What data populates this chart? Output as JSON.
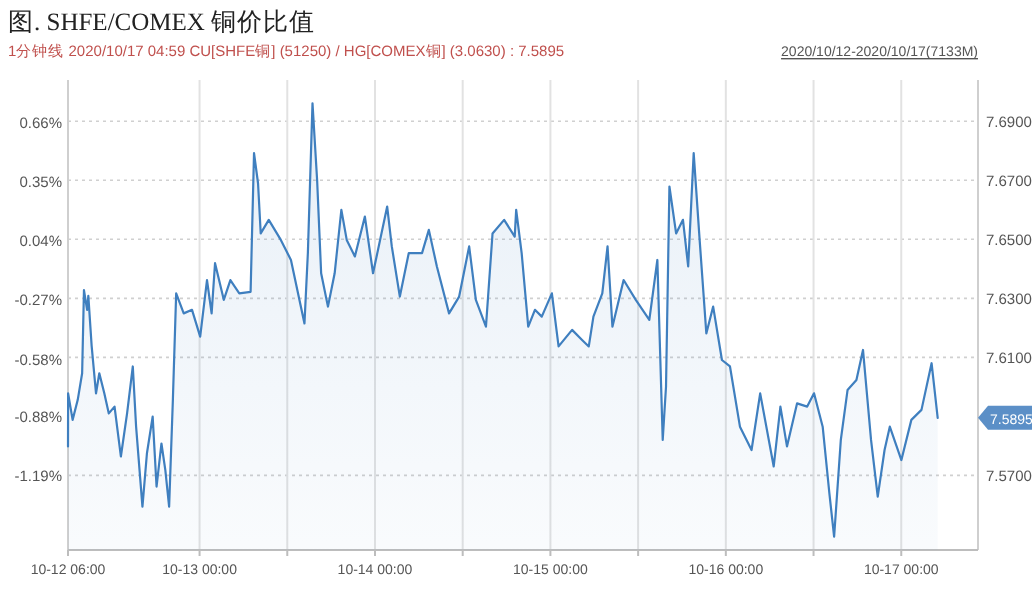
{
  "chart_data": {
    "type": "area",
    "title": "图. SHFE/COMEX 铜价比值",
    "subtitle": "1分钟线 2020/10/17 04:59 CU[SHFE铜] (51250) / HG[COMEX铜] (3.0630) : 7.5895",
    "annotations": [
      "2020/10/12-2020/10/17(7133M)",
      "7.5895"
    ],
    "x": [
      "2020-10-12T06:00",
      "2020-10-12T06:01",
      "2020-10-12T06:38",
      "2020-10-12T07:20",
      "2020-10-12T07:56",
      "2020-10-12T08:11",
      "2020-10-12T08:37",
      "2020-10-12T08:47",
      "2020-10-12T09:14",
      "2020-10-12T09:50",
      "2020-10-12T10:17",
      "2020-10-12T10:58",
      "2020-10-12T11:35",
      "2020-10-12T12:22",
      "2020-10-12T13:14",
      "2020-10-12T14:05",
      "2020-10-12T14:52",
      "2020-10-12T15:19",
      "2020-10-12T16:11",
      "2020-10-12T16:48",
      "2020-10-12T17:35",
      "2020-10-12T18:07",
      "2020-10-12T18:47",
      "2020-10-12T19:19",
      "2020-10-12T19:50",
      "2020-10-12T20:21",
      "2020-10-12T20:48",
      "2020-10-12T21:50",
      "2020-10-12T22:58",
      "2020-10-13T00:05",
      "2020-10-13T01:01",
      "2020-10-13T01:39",
      "2020-10-13T02:07",
      "2020-10-13T03:19",
      "2020-10-13T04:13",
      "2020-10-13T05:26",
      "2020-10-13T06:59",
      "2020-10-13T07:27",
      "2020-10-13T08:00",
      "2020-10-13T08:22",
      "2020-10-13T09:28",
      "2020-10-13T11:07",
      "2020-10-13T12:30",
      "2020-10-13T14:21",
      "2020-10-13T14:49",
      "2020-10-13T15:27",
      "2020-10-13T16:05",
      "2020-10-13T16:38",
      "2020-10-13T17:34",
      "2020-10-13T18:29",
      "2020-10-13T19:24",
      "2020-10-13T20:08",
      "2020-10-13T21:15",
      "2020-10-13T22:37",
      "2020-10-13T23:44",
      "2020-10-14T01:40",
      "2020-10-14T02:18",
      "2020-10-14T03:24",
      "2020-10-14T04:37",
      "2020-10-14T06:26",
      "2020-10-14T07:22",
      "2020-10-14T08:28",
      "2020-10-14T10:08",
      "2020-10-14T11:31",
      "2020-10-14T12:53",
      "2020-10-14T13:48",
      "2020-10-14T15:11",
      "2020-10-14T16:05",
      "2020-10-14T17:40",
      "2020-10-14T19:07",
      "2020-10-14T19:19",
      "2020-10-14T20:04",
      "2020-10-14T20:58",
      "2020-10-14T21:53",
      "2020-10-14T22:49",
      "2020-10-15T00:12",
      "2020-10-15T01:07",
      "2020-10-15T02:58",
      "2020-10-15T04:20",
      "2020-10-15T05:15",
      "2020-10-15T05:53",
      "2020-10-15T07:06",
      "2020-10-15T07:49",
      "2020-10-15T08:29",
      "2020-10-15T10:01",
      "2020-10-15T11:41",
      "2020-10-15T13:32",
      "2020-10-15T14:38",
      "2020-10-15T15:22",
      "2020-10-15T15:49",
      "2020-10-15T16:17",
      "2020-10-15T17:12",
      "2020-10-15T18:08",
      "2020-10-15T18:51",
      "2020-10-15T19:36",
      "2020-10-15T20:25",
      "2020-10-15T21:20",
      "2020-10-15T22:16",
      "2020-10-15T23:28",
      "2020-10-16T00:34",
      "2020-10-16T01:56",
      "2020-10-16T03:31",
      "2020-10-16T04:42",
      "2020-10-16T06:33",
      "2020-10-16T07:28",
      "2020-10-16T08:22",
      "2020-10-16T09:45",
      "2020-10-16T11:08",
      "2020-10-16T12:04",
      "2020-10-16T13:15",
      "2020-10-16T14:10",
      "2020-10-16T14:49",
      "2020-10-16T15:44",
      "2020-10-16T16:39",
      "2020-10-16T17:52",
      "2020-10-16T18:46",
      "2020-10-16T19:52",
      "2020-10-16T20:47",
      "2020-10-16T21:43",
      "2020-10-16T22:26",
      "2020-10-17T00:01",
      "2020-10-17T01:23",
      "2020-10-17T02:46",
      "2020-10-17T04:09",
      "2020-10-17T04:59"
    ],
    "series": [
      {
        "color": "#3f7fbf",
        "values": [
          7.5798,
          7.5978,
          7.5888,
          7.5956,
          7.6046,
          7.6328,
          7.6261,
          7.6308,
          7.6139,
          7.5978,
          7.6046,
          7.5978,
          7.591,
          7.5933,
          7.5764,
          7.591,
          7.6069,
          7.5865,
          7.5594,
          7.5775,
          7.5899,
          7.5662,
          7.5808,
          7.5718,
          7.5594,
          7.5956,
          7.6317,
          7.6249,
          7.6261,
          7.617,
          7.6362,
          7.6249,
          7.6419,
          7.6295,
          7.6362,
          7.6317,
          7.6322,
          7.6792,
          7.669,
          7.652,
          7.6566,
          7.6498,
          7.643,
          7.6215,
          7.6453,
          7.6961,
          7.6701,
          7.6385,
          7.6272,
          7.6385,
          7.66,
          7.6498,
          7.6442,
          7.6577,
          7.6385,
          7.6611,
          7.6476,
          7.6306,
          7.6453,
          7.6453,
          7.6532,
          7.6408,
          7.6249,
          7.6306,
          7.6476,
          7.6295,
          7.6204,
          7.652,
          7.6566,
          7.6509,
          7.66,
          7.6453,
          7.6204,
          7.6261,
          7.6238,
          7.6317,
          7.6137,
          7.6193,
          7.6159,
          7.6137,
          7.6238,
          7.6317,
          7.6476,
          7.6204,
          7.6362,
          7.6295,
          7.6227,
          7.643,
          7.582,
          7.6001,
          7.6679,
          7.652,
          7.6566,
          7.6408,
          7.6792,
          7.6498,
          7.6181,
          7.6272,
          7.6091,
          7.6069,
          7.5865,
          7.5786,
          7.5978,
          7.573,
          7.5933,
          7.5798,
          7.5944,
          7.5933,
          7.5978,
          7.5865,
          7.5639,
          7.5492,
          7.582,
          7.5989,
          7.6023,
          7.6125,
          7.582,
          7.5628,
          7.5786,
          7.5865,
          7.5752,
          7.5888,
          7.5922,
          7.608,
          7.5895
        ]
      }
    ],
    "xlim": [
      "2020-10-12T06:00",
      "2020-10-17T10:30"
    ],
    "xticks": [
      {
        "value": "2020-10-12T06:00",
        "label": "10-12 06:00"
      },
      {
        "value": "2020-10-13T00:00",
        "label": "10-13 00:00"
      },
      {
        "value": "2020-10-13T12:00",
        "label": null
      },
      {
        "value": "2020-10-14T00:00",
        "label": "10-14 00:00"
      },
      {
        "value": "2020-10-14T12:00",
        "label": null
      },
      {
        "value": "2020-10-15T00:00",
        "label": "10-15 00:00"
      },
      {
        "value": "2020-10-15T12:00",
        "label": null
      },
      {
        "value": "2020-10-16T00:00",
        "label": "10-16 00:00"
      },
      {
        "value": "2020-10-16T12:00",
        "label": null
      },
      {
        "value": "2020-10-17T00:00",
        "label": "10-17 00:00"
      }
    ],
    "y2lim": [
      -1.582,
      0.878
    ],
    "y2ticks": [
      {
        "value": 0.66,
        "label": "0.66%"
      },
      {
        "value": 0.35,
        "label": "0.35%"
      },
      {
        "value": 0.04,
        "label": "0.04%"
      },
      {
        "value": -0.27,
        "label": "-0.27%"
      },
      {
        "value": -0.58,
        "label": "-0.58%"
      },
      {
        "value": -0.88,
        "label": "-0.88%"
      },
      {
        "value": -1.19,
        "label": "-1.19%"
      }
    ],
    "ylim": [
      7.5447,
      7.704
    ],
    "yticks": [
      {
        "value": 7.69,
        "label": "7.6900"
      },
      {
        "value": 7.67,
        "label": "7.6700"
      },
      {
        "value": 7.65,
        "label": "7.6500"
      },
      {
        "value": 7.63,
        "label": "7.6300"
      },
      {
        "value": 7.61,
        "label": "7.6100"
      },
      {
        "value": 7.57,
        "label": "7.5700"
      }
    ],
    "grid": true,
    "marker": "none",
    "line_style": "solid"
  }
}
